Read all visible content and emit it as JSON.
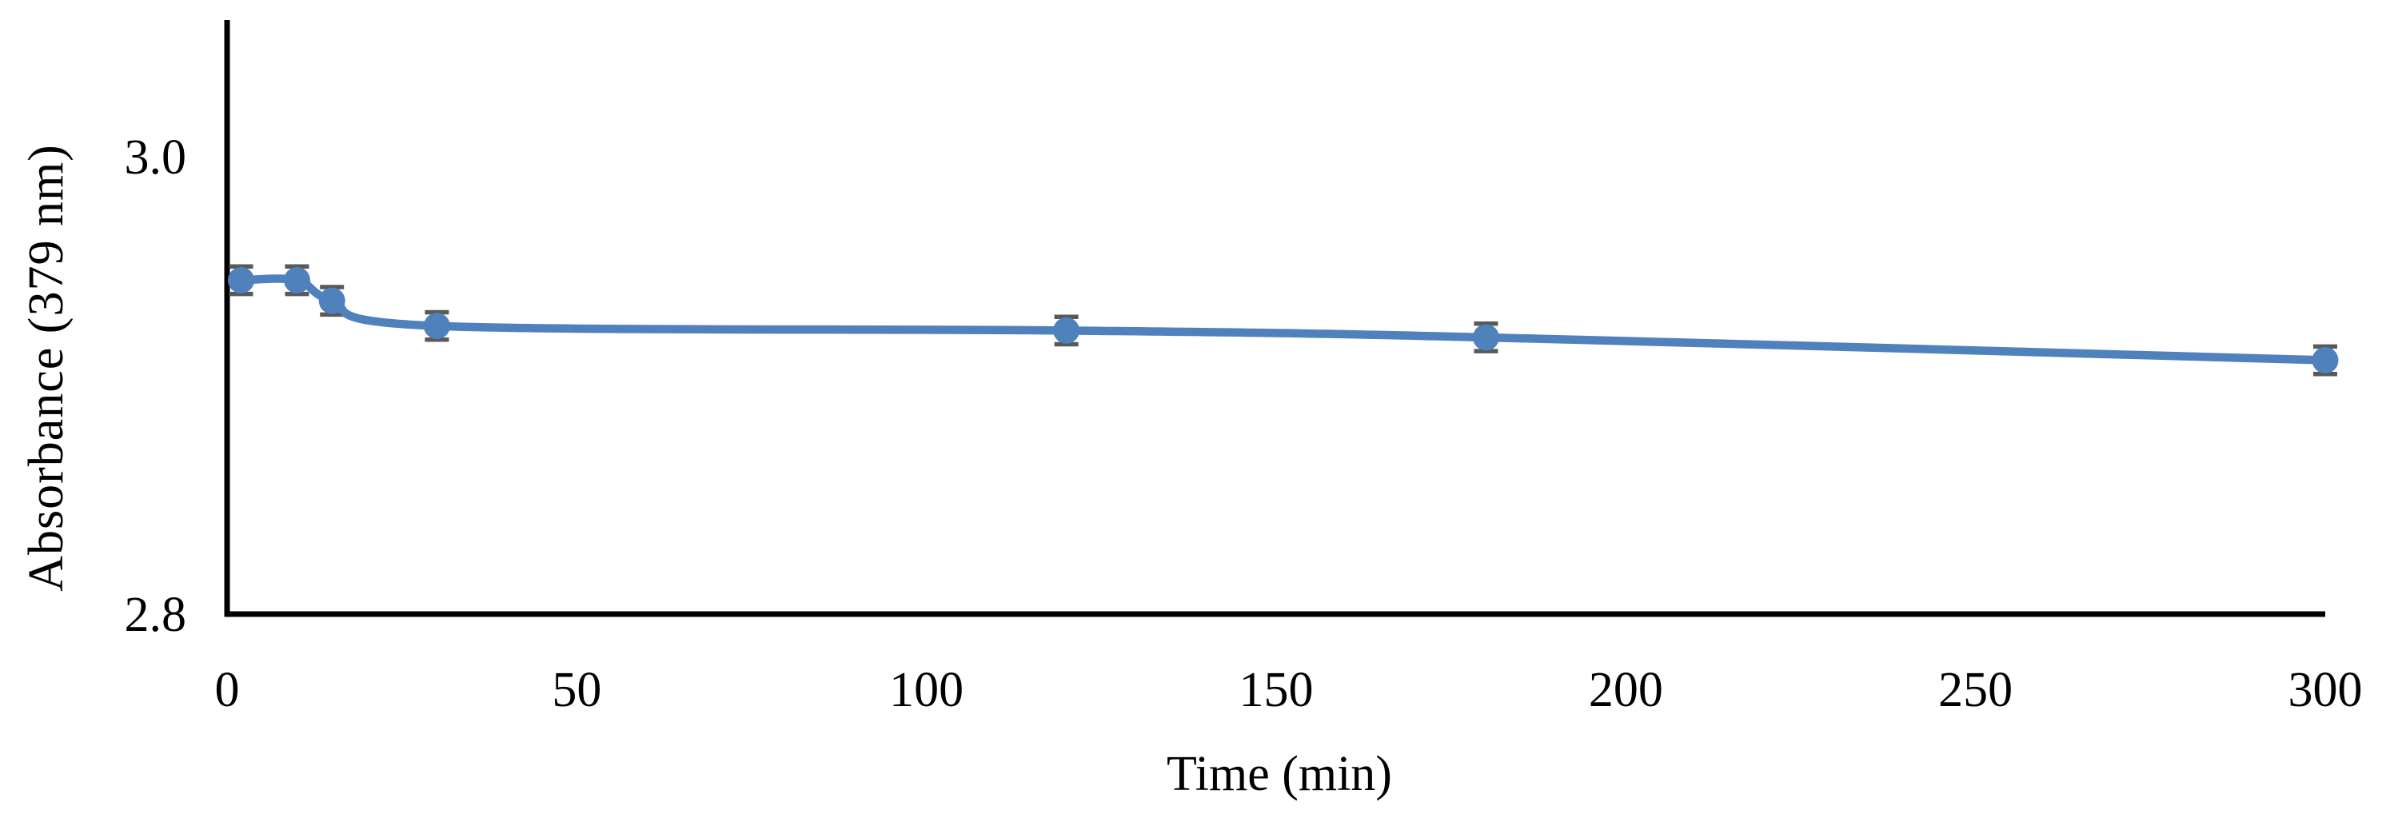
{
  "figure": {
    "background": "#ffffff",
    "colors": {
      "series": "#4F81BD",
      "error_bar": "#595959",
      "axis_line": "#000000",
      "text": "#000000"
    }
  },
  "chart_data": {
    "type": "line",
    "title": "",
    "xlabel": "Time (min)",
    "ylabel": "Absorbance (379 nm)",
    "x": [
      2,
      10,
      15,
      30,
      120,
      180,
      300
    ],
    "series": [
      {
        "name": "Absorbance at 379 nm",
        "values": [
          2.946,
          2.946,
          2.937,
          2.926,
          2.924,
          2.921,
          2.911
        ],
        "error": [
          0.006,
          0.006,
          0.006,
          0.006,
          0.006,
          0.006,
          0.006
        ]
      }
    ],
    "xlim": [
      0,
      300
    ],
    "ylim": [
      2.8,
      3.06
    ],
    "x_ticks": [
      "0",
      "50",
      "100",
      "150",
      "200",
      "250",
      "300"
    ],
    "x_tick_values": [
      0,
      50,
      100,
      150,
      200,
      250,
      300
    ],
    "y_ticks": [
      "2.8",
      "3.0"
    ],
    "y_tick_values": [
      2.8,
      3.0
    ],
    "grid": false,
    "legend": "none",
    "line_style": "smooth",
    "marker": "circle",
    "error_bars": "y-both-caps"
  }
}
